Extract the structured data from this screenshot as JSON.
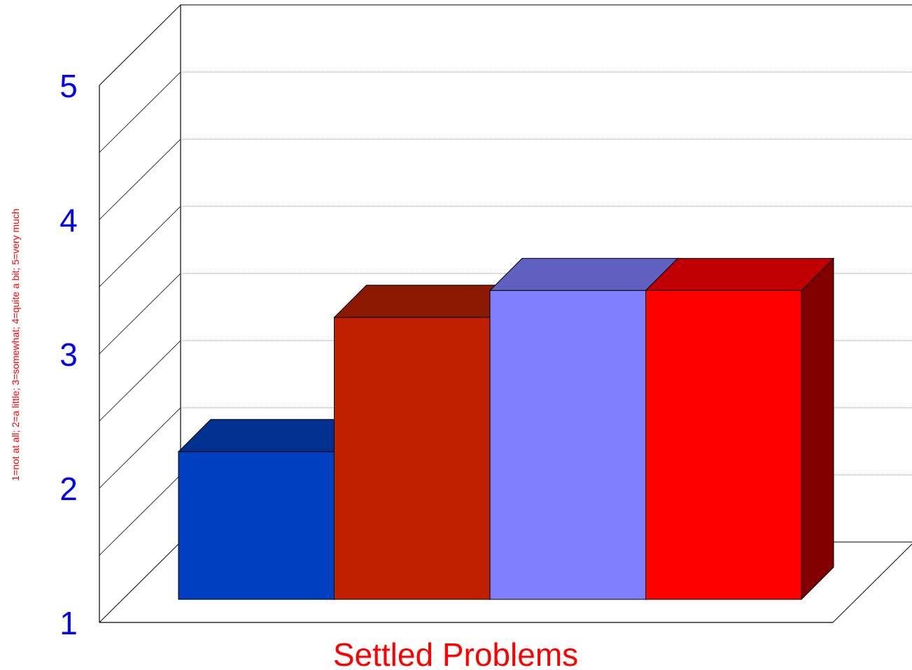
{
  "chart_data": {
    "type": "bar",
    "categories": [
      "Settled Problems"
    ],
    "series": [
      {
        "values": [
          2.1
        ],
        "colors": {
          "front": "#0040c0",
          "top": "#003090",
          "side": "#002070"
        }
      },
      {
        "values": [
          3.1
        ],
        "colors": {
          "front": "#c02000",
          "top": "#8b1800",
          "side": "#701000"
        }
      },
      {
        "values": [
          3.3
        ],
        "colors": {
          "front": "#8080ff",
          "top": "#6060c0",
          "side": "#5050a0"
        }
      },
      {
        "values": [
          3.3
        ],
        "colors": {
          "front": "#ff0000",
          "top": "#c00000",
          "side": "#800000"
        }
      }
    ],
    "title": "",
    "xlabel": "Settled Problems",
    "ylabel": "1=not at all; 2=a little; 3=somewhat; 4=quite a bit; 5=very much",
    "ylim": [
      1,
      5
    ],
    "yticks": [
      "1",
      "2",
      "3",
      "4",
      "5"
    ],
    "grid": true,
    "three_d": true,
    "colors": {
      "tick_labels": "#0000ff",
      "axis_title": "#ff0000",
      "category_label": "#ff0000",
      "gridline": "#808080",
      "frame": "#000000"
    }
  }
}
